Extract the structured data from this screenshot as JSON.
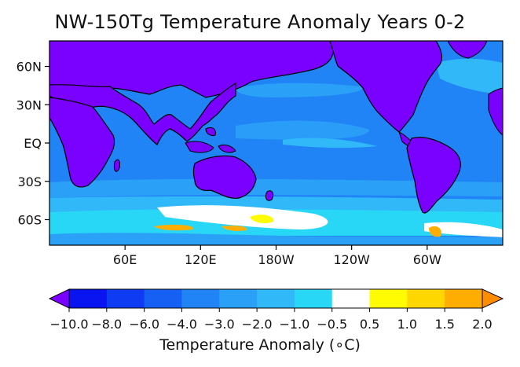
{
  "chart_data": {
    "type": "heatmap",
    "title": "NW-150Tg Temperature Anomaly Years 0-2",
    "projection": "global map, longitude 0 to 360",
    "x_ticks": [
      "60E",
      "120E",
      "180W",
      "120W",
      "60W"
    ],
    "x_tick_values": [
      60,
      120,
      180,
      240,
      300
    ],
    "y_ticks": [
      "60N",
      "30N",
      "EQ",
      "30S",
      "60S"
    ],
    "y_tick_values": [
      60,
      30,
      0,
      -30,
      -60
    ],
    "xlim": [
      0,
      360
    ],
    "ylim": [
      -80,
      80
    ],
    "colorbar": {
      "label": "Temperature Anomaly (∘C)",
      "ticks": [
        "−10.0",
        "−8.0",
        "−6.0",
        "−4.0",
        "−3.0",
        "−2.0",
        "−1.0",
        "−0.5",
        "0.5",
        "1.0",
        "1.5",
        "2.0"
      ],
      "levels": [
        -10.0,
        -8.0,
        -6.0,
        -4.0,
        -3.0,
        -2.0,
        -1.0,
        -0.5,
        0.5,
        1.0,
        1.5,
        2.0
      ],
      "colors": [
        "#0a14f0",
        "#0f3cf2",
        "#1760f4",
        "#2184f6",
        "#2aa0f7",
        "#30b8f8",
        "#28d6f6",
        "#ffffff",
        "#fffb00",
        "#ffd700",
        "#ffae00"
      ],
      "under_color": "#7a00ff",
      "over_color": "#ff8c00",
      "extend": "both"
    }
  }
}
